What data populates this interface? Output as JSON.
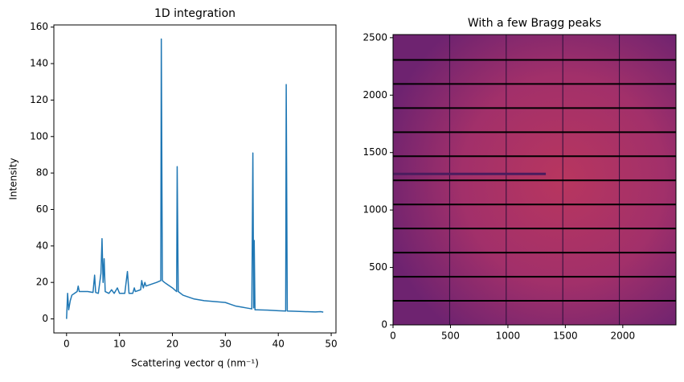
{
  "chart_data": [
    {
      "type": "line",
      "title": "1D integration",
      "xlabel": "Scattering vector q (nm⁻¹)",
      "ylabel": "Intensity",
      "color": "#1f77b4",
      "x": [
        0,
        0.2,
        0.4,
        0.7,
        1,
        1.5,
        2,
        2.2,
        2.4,
        3,
        4,
        5,
        5.3,
        5.5,
        6,
        6.5,
        6.7,
        6.9,
        7.1,
        7.3,
        8,
        8.5,
        9,
        9.6,
        10,
        11,
        11.5,
        11.8,
        12.5,
        12.8,
        13,
        14,
        14.2,
        14.5,
        14.8,
        15,
        16,
        17,
        17.8,
        17.9,
        18.1,
        18.5,
        19,
        20,
        20.8,
        20.9,
        21.1,
        22,
        23,
        24,
        25,
        26,
        28,
        30,
        31,
        32,
        33,
        34,
        35,
        35.2,
        35.35,
        35.45,
        35.6,
        36,
        38,
        40,
        41.4,
        41.5,
        41.7,
        43,
        45,
        47,
        48,
        48.5
      ],
      "values": [
        0,
        14,
        5,
        10,
        13,
        14,
        15,
        18,
        15,
        15,
        15,
        14.5,
        24,
        14.5,
        14,
        25,
        44,
        20,
        33,
        15,
        14,
        16,
        14,
        17,
        14,
        14,
        26,
        14,
        14,
        17,
        15,
        16,
        21,
        17,
        20,
        18,
        19,
        20,
        21,
        153.5,
        21,
        20,
        19,
        17,
        15,
        83.5,
        15,
        13,
        12,
        11,
        10.5,
        10,
        9.5,
        9,
        8,
        7,
        6.5,
        6,
        5.5,
        91,
        6,
        43,
        5,
        5,
        4.8,
        4.5,
        4.3,
        128.5,
        4.3,
        4.2,
        4,
        3.8,
        4,
        3.7
      ],
      "xlim": [
        -2.4,
        50.9
      ],
      "ylim": [
        -7.7,
        161.2
      ],
      "xticks": [
        0,
        10,
        20,
        30,
        40,
        50
      ],
      "yticks": [
        0,
        20,
        40,
        60,
        80,
        100,
        120,
        140,
        160
      ]
    },
    {
      "type": "image",
      "title": "With a few Bragg peaks",
      "xlim": [
        0,
        2463
      ],
      "ylim": [
        0,
        2527
      ],
      "xticks": [
        0,
        500,
        1000,
        1500,
        2000
      ],
      "yticks": [
        0,
        500,
        1000,
        1500,
        2000,
        2500
      ]
    }
  ]
}
